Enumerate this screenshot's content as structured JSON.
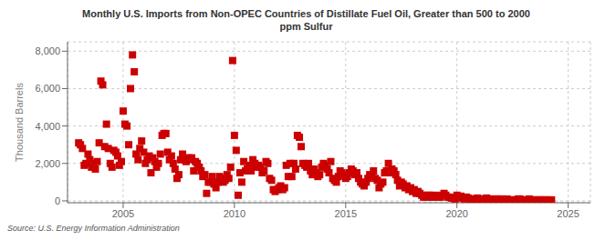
{
  "chart_data": {
    "type": "scatter",
    "title": "Monthly U.S. Imports from Non-OPEC Countries of Distillate Fuel Oil, Greater than 500 to 2000\nppm Sulfur",
    "y_label": "Thousand Barrels",
    "annotations": [
      "Source: U.S. Energy Information Administration"
    ],
    "color": "#cc0000",
    "marker": "square",
    "grid": true,
    "xlim": [
      2002.5,
      2026
    ],
    "ylim": [
      -100,
      8500
    ],
    "xticks": [
      2005,
      2010,
      2015,
      2020,
      2025
    ],
    "yticks": [
      0,
      {
        "value": 2000,
        "label": "2,000"
      },
      {
        "value": 4000,
        "label": "4,000"
      },
      {
        "value": 6000,
        "label": "6,000"
      },
      {
        "value": 8000,
        "label": "8,000"
      }
    ],
    "x": [
      2003.0,
      2003.08,
      2003.17,
      2003.25,
      2003.33,
      2003.42,
      2003.5,
      2003.58,
      2003.67,
      2003.75,
      2003.83,
      2003.92,
      2004.0,
      2004.08,
      2004.17,
      2004.25,
      2004.33,
      2004.42,
      2004.5,
      2004.58,
      2004.67,
      2004.75,
      2004.83,
      2004.92,
      2005.0,
      2005.08,
      2005.17,
      2005.25,
      2005.33,
      2005.42,
      2005.5,
      2005.58,
      2005.67,
      2005.75,
      2005.83,
      2005.92,
      2006.0,
      2006.08,
      2006.17,
      2006.25,
      2006.33,
      2006.42,
      2006.5,
      2006.58,
      2006.67,
      2006.75,
      2006.83,
      2006.92,
      2007.0,
      2007.08,
      2007.17,
      2007.25,
      2007.33,
      2007.42,
      2007.5,
      2007.58,
      2007.67,
      2007.75,
      2007.83,
      2007.92,
      2008.0,
      2008.08,
      2008.17,
      2008.25,
      2008.33,
      2008.42,
      2008.5,
      2008.58,
      2008.67,
      2008.75,
      2008.83,
      2008.92,
      2009.0,
      2009.08,
      2009.17,
      2009.25,
      2009.33,
      2009.42,
      2009.5,
      2009.58,
      2009.67,
      2009.75,
      2009.83,
      2009.92,
      2010.0,
      2010.08,
      2010.17,
      2010.25,
      2010.33,
      2010.42,
      2010.5,
      2010.58,
      2010.67,
      2010.75,
      2010.83,
      2010.92,
      2011.0,
      2011.08,
      2011.17,
      2011.25,
      2011.33,
      2011.42,
      2011.5,
      2011.58,
      2011.67,
      2011.75,
      2011.83,
      2011.92,
      2012.0,
      2012.08,
      2012.17,
      2012.25,
      2012.33,
      2012.42,
      2012.5,
      2012.58,
      2012.67,
      2012.75,
      2012.83,
      2012.92,
      2013.0,
      2013.08,
      2013.17,
      2013.25,
      2013.33,
      2013.42,
      2013.5,
      2013.58,
      2013.67,
      2013.75,
      2013.83,
      2013.92,
      2014.0,
      2014.08,
      2014.17,
      2014.25,
      2014.33,
      2014.42,
      2014.5,
      2014.58,
      2014.67,
      2014.75,
      2014.83,
      2014.92,
      2015.0,
      2015.08,
      2015.17,
      2015.25,
      2015.33,
      2015.42,
      2015.5,
      2015.58,
      2015.67,
      2015.75,
      2015.83,
      2015.92,
      2016.0,
      2016.08,
      2016.17,
      2016.25,
      2016.33,
      2016.42,
      2016.5,
      2016.58,
      2016.67,
      2016.75,
      2016.83,
      2016.92,
      2017.0,
      2017.08,
      2017.17,
      2017.25,
      2017.33,
      2017.42,
      2017.5,
      2017.58,
      2017.67,
      2017.75,
      2017.83,
      2017.92,
      2018.0,
      2018.08,
      2018.17,
      2018.25,
      2018.33,
      2018.42,
      2018.5,
      2018.58,
      2018.67,
      2018.75,
      2018.83,
      2018.92,
      2019.0,
      2019.08,
      2019.17,
      2019.25,
      2019.33,
      2019.42,
      2019.5,
      2019.58,
      2019.67,
      2019.75,
      2019.83,
      2019.92,
      2020.0,
      2020.08,
      2020.17,
      2020.25,
      2020.33,
      2020.42,
      2020.5,
      2020.58,
      2020.67,
      2020.75,
      2020.83,
      2020.92,
      2021.0,
      2021.08,
      2021.17,
      2021.25,
      2021.33,
      2021.42,
      2021.5,
      2021.58,
      2021.67,
      2021.75,
      2021.83,
      2021.92,
      2022.0,
      2022.08,
      2022.17,
      2022.25,
      2022.33,
      2022.42,
      2022.5,
      2022.58,
      2022.67,
      2022.75,
      2022.83,
      2022.92,
      2023.0,
      2023.08,
      2023.17,
      2023.25,
      2023.33,
      2023.42,
      2023.5,
      2023.58,
      2023.67,
      2023.75,
      2023.83,
      2023.92,
      2024.0,
      2024.08,
      2024.17,
      2024.25
    ],
    "values": [
      3100,
      3000,
      2800,
      1900,
      2000,
      2500,
      2200,
      1800,
      2000,
      1700,
      2100,
      3100,
      6400,
      6200,
      2900,
      4100,
      2800,
      2000,
      1800,
      2700,
      2600,
      2400,
      1900,
      2100,
      4800,
      4100,
      4000,
      3000,
      6000,
      7800,
      6900,
      2500,
      2200,
      2800,
      3200,
      2600,
      2000,
      2200,
      2400,
      1500,
      2300,
      2100,
      1800,
      2000,
      2500,
      3500,
      3600,
      3600,
      2600,
      2200,
      2400,
      2000,
      1700,
      1200,
      1400,
      2200,
      2500,
      2200,
      2100,
      2300,
      2200,
      2300,
      1600,
      2100,
      2000,
      1800,
      1600,
      1300,
      1400,
      400,
      1000,
      1000,
      1300,
      900,
      700,
      1000,
      1300,
      1200,
      1000,
      1100,
      1400,
      1200,
      1800,
      7500,
      3500,
      2700,
      300,
      1500,
      1000,
      2100,
      1600,
      1700,
      1900,
      1600,
      2200,
      2000,
      1800,
      1900,
      1800,
      1500,
      1600,
      2100,
      2000,
      1200,
      1100,
      600,
      500,
      600,
      700,
      800,
      600,
      700,
      1900,
      1300,
      2000,
      1300,
      2000,
      1700,
      3500,
      3400,
      2900,
      2000,
      1900,
      1800,
      2000,
      1600,
      1400,
      1700,
      1500,
      1300,
      1400,
      1800,
      2000,
      1900,
      1700,
      1500,
      2100,
      1200,
      1100,
      1000,
      1300,
      1600,
      1500,
      1400,
      1200,
      1300,
      1500,
      1700,
      1600,
      1400,
      1500,
      1200,
      1000,
      900,
      800,
      1000,
      1200,
      1400,
      1300,
      1600,
      1200,
      1100,
      700,
      900,
      1000,
      1500,
      1600,
      2000,
      1500,
      1700,
      1600,
      1400,
      1100,
      800,
      1000,
      900,
      700,
      800,
      600,
      700,
      500,
      600,
      400,
      500,
      400,
      300,
      200,
      200,
      300,
      300,
      200,
      200,
      300,
      250,
      200,
      200,
      300,
      400,
      300,
      200,
      200,
      150,
      150,
      100,
      300,
      200,
      250,
      150,
      100,
      200,
      150,
      100,
      100,
      100,
      100,
      150,
      100,
      100,
      50,
      100,
      150,
      100,
      100,
      50,
      50,
      100,
      100,
      50,
      100,
      50,
      50,
      100,
      50,
      50,
      50,
      50,
      50,
      100,
      100,
      50,
      50,
      50,
      50,
      100,
      50,
      50,
      50,
      50,
      50,
      50,
      50,
      50,
      50,
      50,
      50,
      50
    ]
  }
}
